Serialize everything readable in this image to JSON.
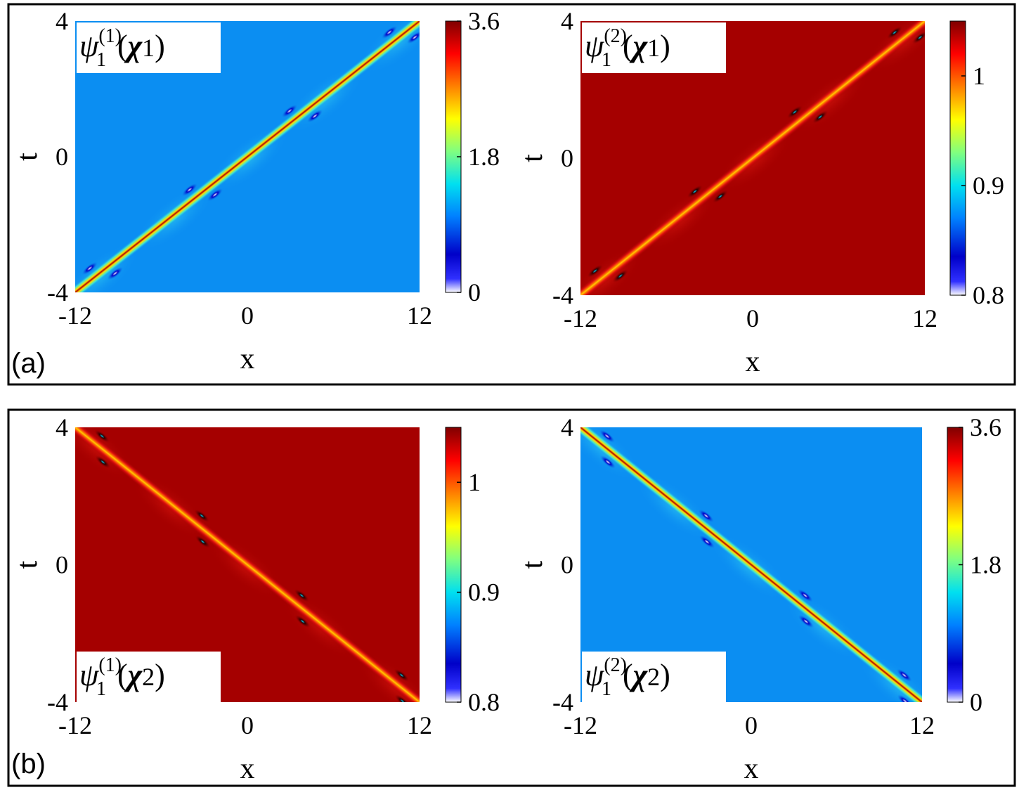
{
  "colors": {
    "background_low": "#0b8ef2",
    "background_high": "#a50000",
    "frame": "#000000"
  },
  "panels": [
    {
      "label": "(a)"
    },
    {
      "label": "(b)"
    }
  ],
  "chart_data": [
    {
      "type": "heatmap",
      "panel": "(a)",
      "inset": {
        "psi": "ψ",
        "sub": "1",
        "sup": "(1)",
        "arg": "χ",
        "argsub": "1"
      },
      "xlabel": "x",
      "ylabel": "t",
      "xlim": [
        -12,
        12
      ],
      "ylim": [
        -4,
        4
      ],
      "xticks": [
        "-12",
        "0",
        "12"
      ],
      "yticks": [
        "4",
        "0",
        "-4"
      ],
      "colorbar": {
        "range": [
          0,
          3.6
        ],
        "ticks": [
          "3.6",
          "1.8",
          "0"
        ]
      },
      "ridge": {
        "from": [
          -12,
          -4
        ],
        "to": [
          12,
          4
        ]
      },
      "background_value": 1.0,
      "inset_corner": "top-left"
    },
    {
      "type": "heatmap",
      "panel": "(a)",
      "inset": {
        "psi": "ψ",
        "sub": "1",
        "sup": "(2)",
        "arg": "χ",
        "argsub": "1"
      },
      "xlabel": "x",
      "ylabel": "t",
      "xlim": [
        -12,
        12
      ],
      "ylim": [
        -4,
        4
      ],
      "xticks": [
        "-12",
        "0",
        "12"
      ],
      "yticks": [
        "4",
        "0",
        "-4"
      ],
      "colorbar": {
        "range": [
          0.8,
          1.05
        ],
        "ticks": [
          "1",
          "0.9",
          "0.8"
        ]
      },
      "ridge": {
        "from": [
          -12,
          -4
        ],
        "to": [
          12,
          4
        ]
      },
      "background_value": 1.0,
      "inset_corner": "top-left"
    },
    {
      "type": "heatmap",
      "panel": "(b)",
      "inset": {
        "psi": "ψ",
        "sub": "1",
        "sup": "(1)",
        "arg": "χ",
        "argsub": "2"
      },
      "xlabel": "x",
      "ylabel": "t",
      "xlim": [
        -12,
        12
      ],
      "ylim": [
        -4,
        4
      ],
      "xticks": [
        "-12",
        "0",
        "12"
      ],
      "yticks": [
        "4",
        "0",
        "-4"
      ],
      "colorbar": {
        "range": [
          0.8,
          1.05
        ],
        "ticks": [
          "1",
          "0.9",
          "0.8"
        ]
      },
      "ridge": {
        "from": [
          -12,
          4
        ],
        "to": [
          12,
          -4
        ]
      },
      "background_value": 1.0,
      "inset_corner": "bottom-left"
    },
    {
      "type": "heatmap",
      "panel": "(b)",
      "inset": {
        "psi": "ψ",
        "sub": "1",
        "sup": "(2)",
        "arg": "χ",
        "argsub": "2"
      },
      "xlabel": "x",
      "ylabel": "t",
      "xlim": [
        -12,
        12
      ],
      "ylim": [
        -4,
        4
      ],
      "xticks": [
        "-12",
        "0",
        "12"
      ],
      "yticks": [
        "4",
        "0",
        "-4"
      ],
      "colorbar": {
        "range": [
          0,
          3.6
        ],
        "ticks": [
          "3.6",
          "1.8",
          "0"
        ]
      },
      "ridge": {
        "from": [
          -12,
          4
        ],
        "to": [
          12,
          -4
        ]
      },
      "background_value": 1.0,
      "inset_corner": "bottom-left"
    }
  ]
}
